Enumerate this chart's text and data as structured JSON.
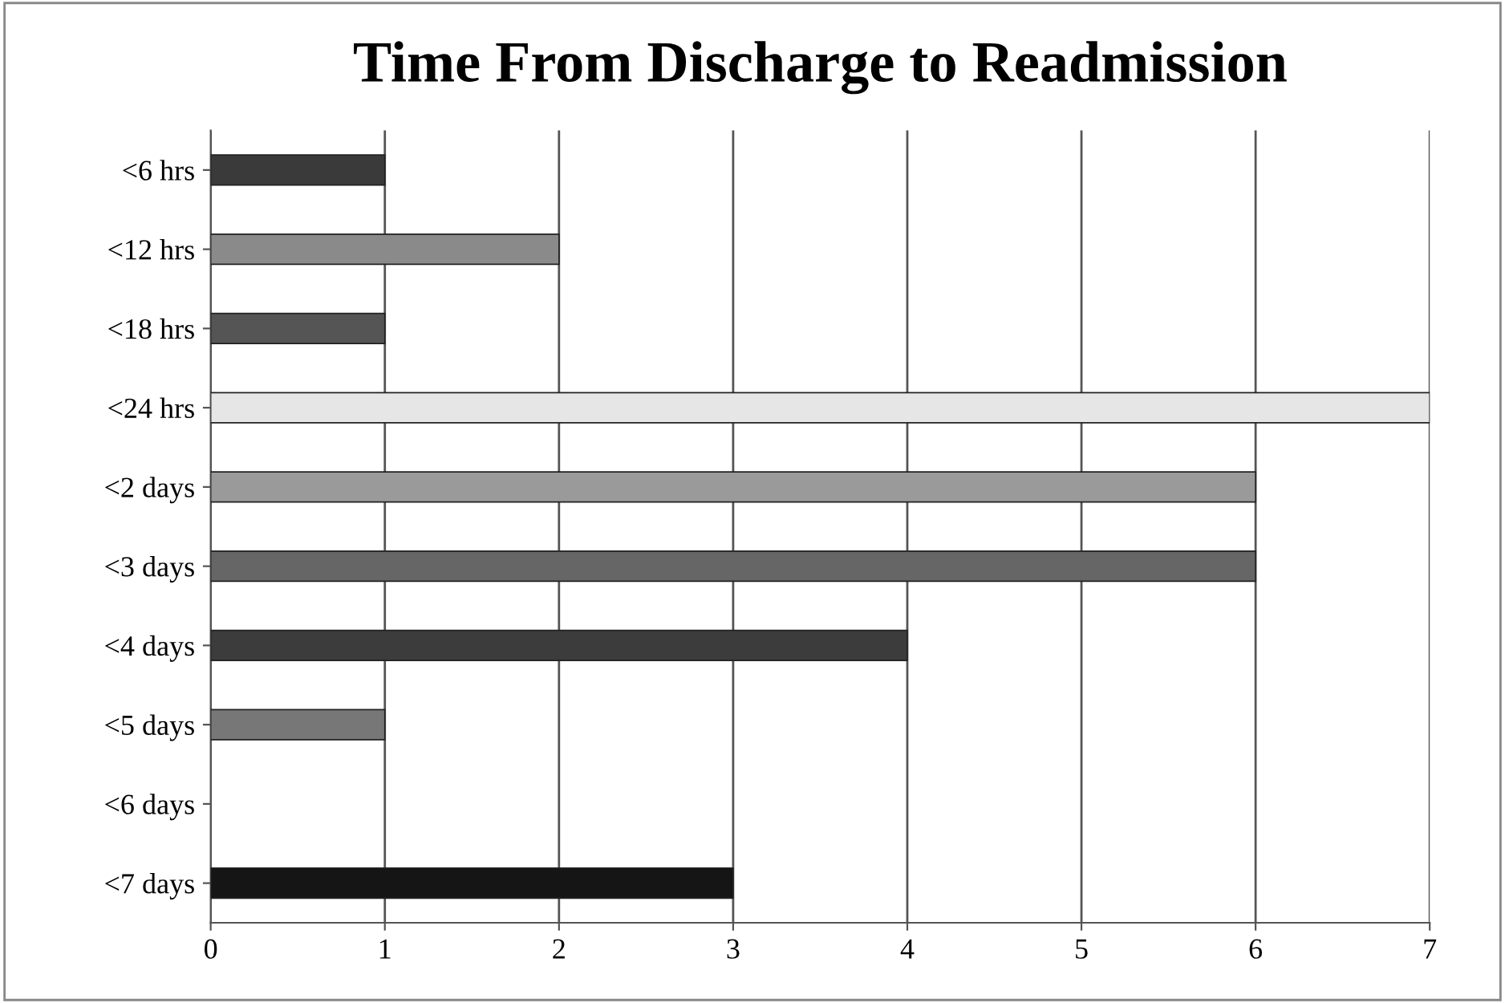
{
  "chart_data": {
    "type": "bar",
    "orientation": "horizontal",
    "title": "Time From Discharge to Readmission",
    "categories": [
      "<6 hrs",
      "<12 hrs",
      "<18 hrs",
      "<24 hrs",
      "<2 days",
      "<3 days",
      "<4 days",
      "<5 days",
      "<6 days",
      "<7 days"
    ],
    "values": [
      1,
      2,
      1,
      7,
      6,
      6,
      4,
      1,
      null,
      3
    ],
    "colors": [
      "#3a3a3a",
      "#8a8a8a",
      "#555555",
      "#e6e6e6",
      "#9a9a9a",
      "#666666",
      "#3c3c3c",
      "#777777",
      "#777777",
      "#151515"
    ],
    "xlim": [
      0,
      7
    ],
    "xticks": [
      0,
      1,
      2,
      3,
      4,
      5,
      6,
      7
    ],
    "grid": "x",
    "legend": false
  }
}
